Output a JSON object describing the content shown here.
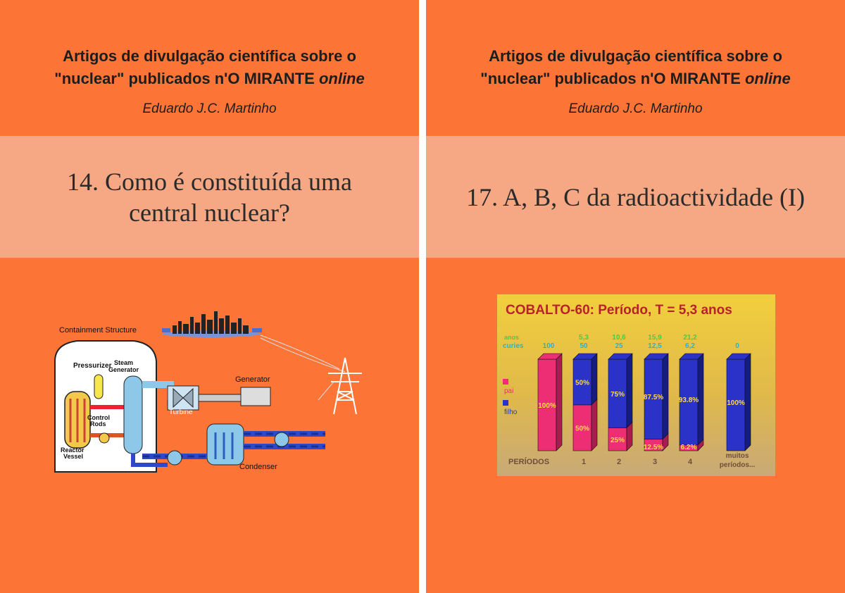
{
  "series": {
    "line1": "Artigos de divulgação científica sobre o",
    "line2_prefix": "\"nuclear\" publicados n'O MIRANTE ",
    "line2_italic": "online",
    "author": "Eduardo J.C. Martinho"
  },
  "covers": [
    {
      "title": "14. Como é constituída uma central nuclear?",
      "diagram_labels": {
        "containment": "Containment Structure",
        "pressurizer": "Pressurizer",
        "steam1": "Steam",
        "steam2": "Generator",
        "generator": "Generator",
        "turbine": "Turbine",
        "control1": "Control",
        "control2": "Rods",
        "reactor1": "Reactor",
        "reactor2": "Vessel",
        "condenser": "Condenser"
      }
    },
    {
      "title": "17. A, B, C da radioactividade (I)"
    }
  ],
  "chart_data": {
    "type": "bar",
    "title": "COBALTO-60: Período, T = 5,3 anos",
    "categories": [
      "",
      "1",
      "2",
      "3",
      "4",
      "muitos períodos..."
    ],
    "axis_label": "PERÍODOS",
    "top_rows": {
      "years_label": "anos",
      "curies_label": "curies",
      "years": [
        "",
        "5,3",
        "10,6",
        "15,9",
        "21,2",
        ""
      ],
      "curies": [
        "100",
        "50",
        "25",
        "12,5",
        "6,2",
        "0"
      ]
    },
    "series": [
      {
        "name": "pai",
        "values": [
          100,
          50,
          25,
          12.5,
          6.2,
          0
        ],
        "labels": [
          "100%",
          "50%",
          "25%",
          "12.5%",
          "6.2%",
          ""
        ],
        "color": "#ee2e74"
      },
      {
        "name": "filho",
        "values": [
          0,
          50,
          75,
          87.5,
          93.8,
          100
        ],
        "labels": [
          "",
          "50%",
          "75%",
          "87.5%",
          "93.8%",
          "100%"
        ],
        "color": "#2a32c8"
      }
    ],
    "ylim": [
      0,
      100
    ]
  },
  "colors": {
    "cover_background": "#fc7536",
    "title_band": "#f5a883",
    "chart_title": "#b8222c"
  }
}
